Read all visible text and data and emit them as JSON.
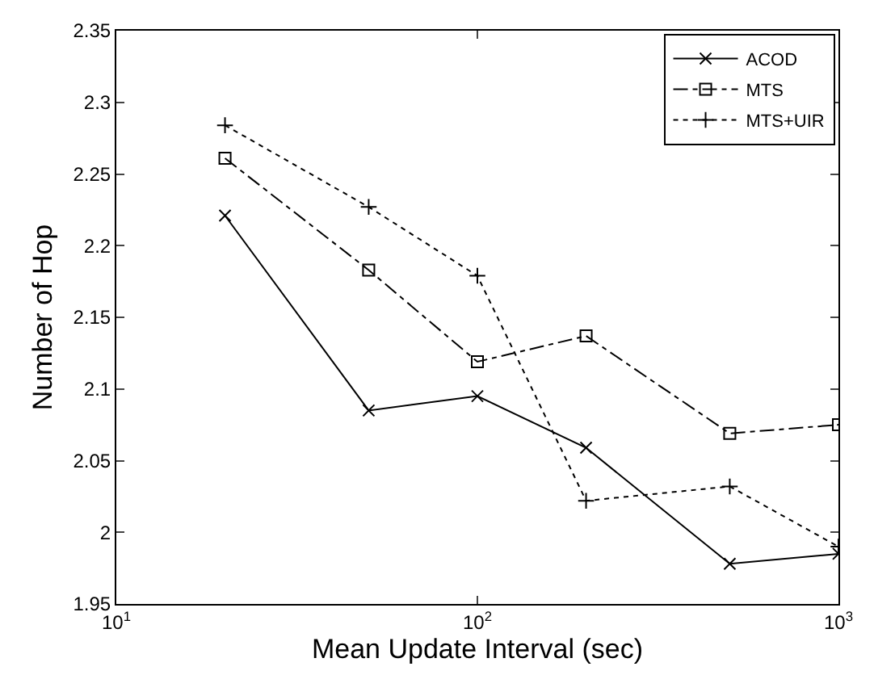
{
  "chart_data": {
    "type": "line",
    "xlabel": "Mean Update Interval (sec)",
    "ylabel": "Number of Hop",
    "x": [
      20,
      50,
      100,
      200,
      500,
      1000
    ],
    "series": [
      {
        "name": "ACOD",
        "color": "#000000",
        "marker": "cross",
        "line_style": "solid",
        "values": [
          2.221,
          2.085,
          2.095,
          2.059,
          1.978,
          1.985
        ]
      },
      {
        "name": "MTS",
        "color": "#000000",
        "marker": "square",
        "line_style": "dashed",
        "values": [
          2.261,
          2.183,
          2.119,
          2.137,
          2.069,
          2.075
        ]
      },
      {
        "name": "MTS+UIR",
        "color": "#000000",
        "marker": "plus",
        "line_style": "dotted",
        "values": [
          2.284,
          2.227,
          2.179,
          2.022,
          2.032,
          1.99
        ]
      }
    ],
    "log": "x",
    "xlim": [
      10,
      1000
    ],
    "xticks": [
      {
        "value": 10,
        "label": "10$^{1}$"
      },
      {
        "value": 100,
        "label": "10$^{2}$"
      },
      {
        "value": 1000,
        "label": "10$^{3}$"
      }
    ],
    "ylim": [
      1.95,
      2.35
    ],
    "yticks": [
      1.95,
      2,
      2.05,
      2.1,
      2.15,
      2.2,
      2.25,
      2.3,
      2.35
    ],
    "legend": "top right"
  }
}
